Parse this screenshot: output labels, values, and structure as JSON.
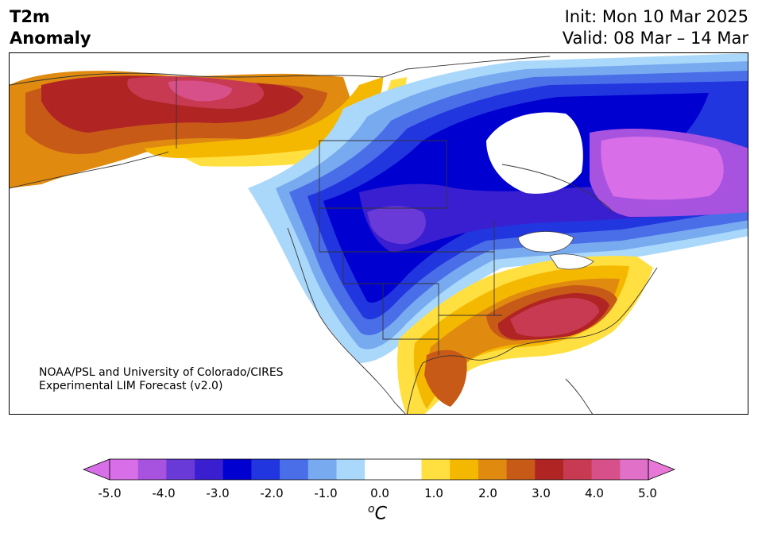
{
  "title": {
    "variable_line1": "T2m",
    "variable_line2": "Anomaly",
    "init": "Init: Mon 10 Mar 2025",
    "valid": "Valid: 08 Mar – 14 Mar"
  },
  "credit": {
    "line1": "NOAA/PSL and University of Colorado/CIRES",
    "line2": "Experimental LIM Forecast (v2.0)"
  },
  "colorbar": {
    "unit_base": "C",
    "unit_sup": "o",
    "ticks": [
      "-5.0",
      "-4.0",
      "-3.0",
      "-2.0",
      "-1.0",
      "0.0",
      "1.0",
      "2.0",
      "3.0",
      "4.0",
      "5.0"
    ],
    "colors": [
      "#d86ee8",
      "#a852e0",
      "#6a3ad8",
      "#3a1fd0",
      "#0000d0",
      "#2236e0",
      "#4a6ee8",
      "#78aaf0",
      "#aad8fa",
      "#ffffff",
      "#ffffff",
      "#ffe040",
      "#f5b800",
      "#e08a10",
      "#c85a18",
      "#b02424",
      "#c83a52",
      "#d8508a",
      "#e070c8"
    ],
    "under_color": "#d86ee8",
    "over_color": "#e878d8"
  }
}
